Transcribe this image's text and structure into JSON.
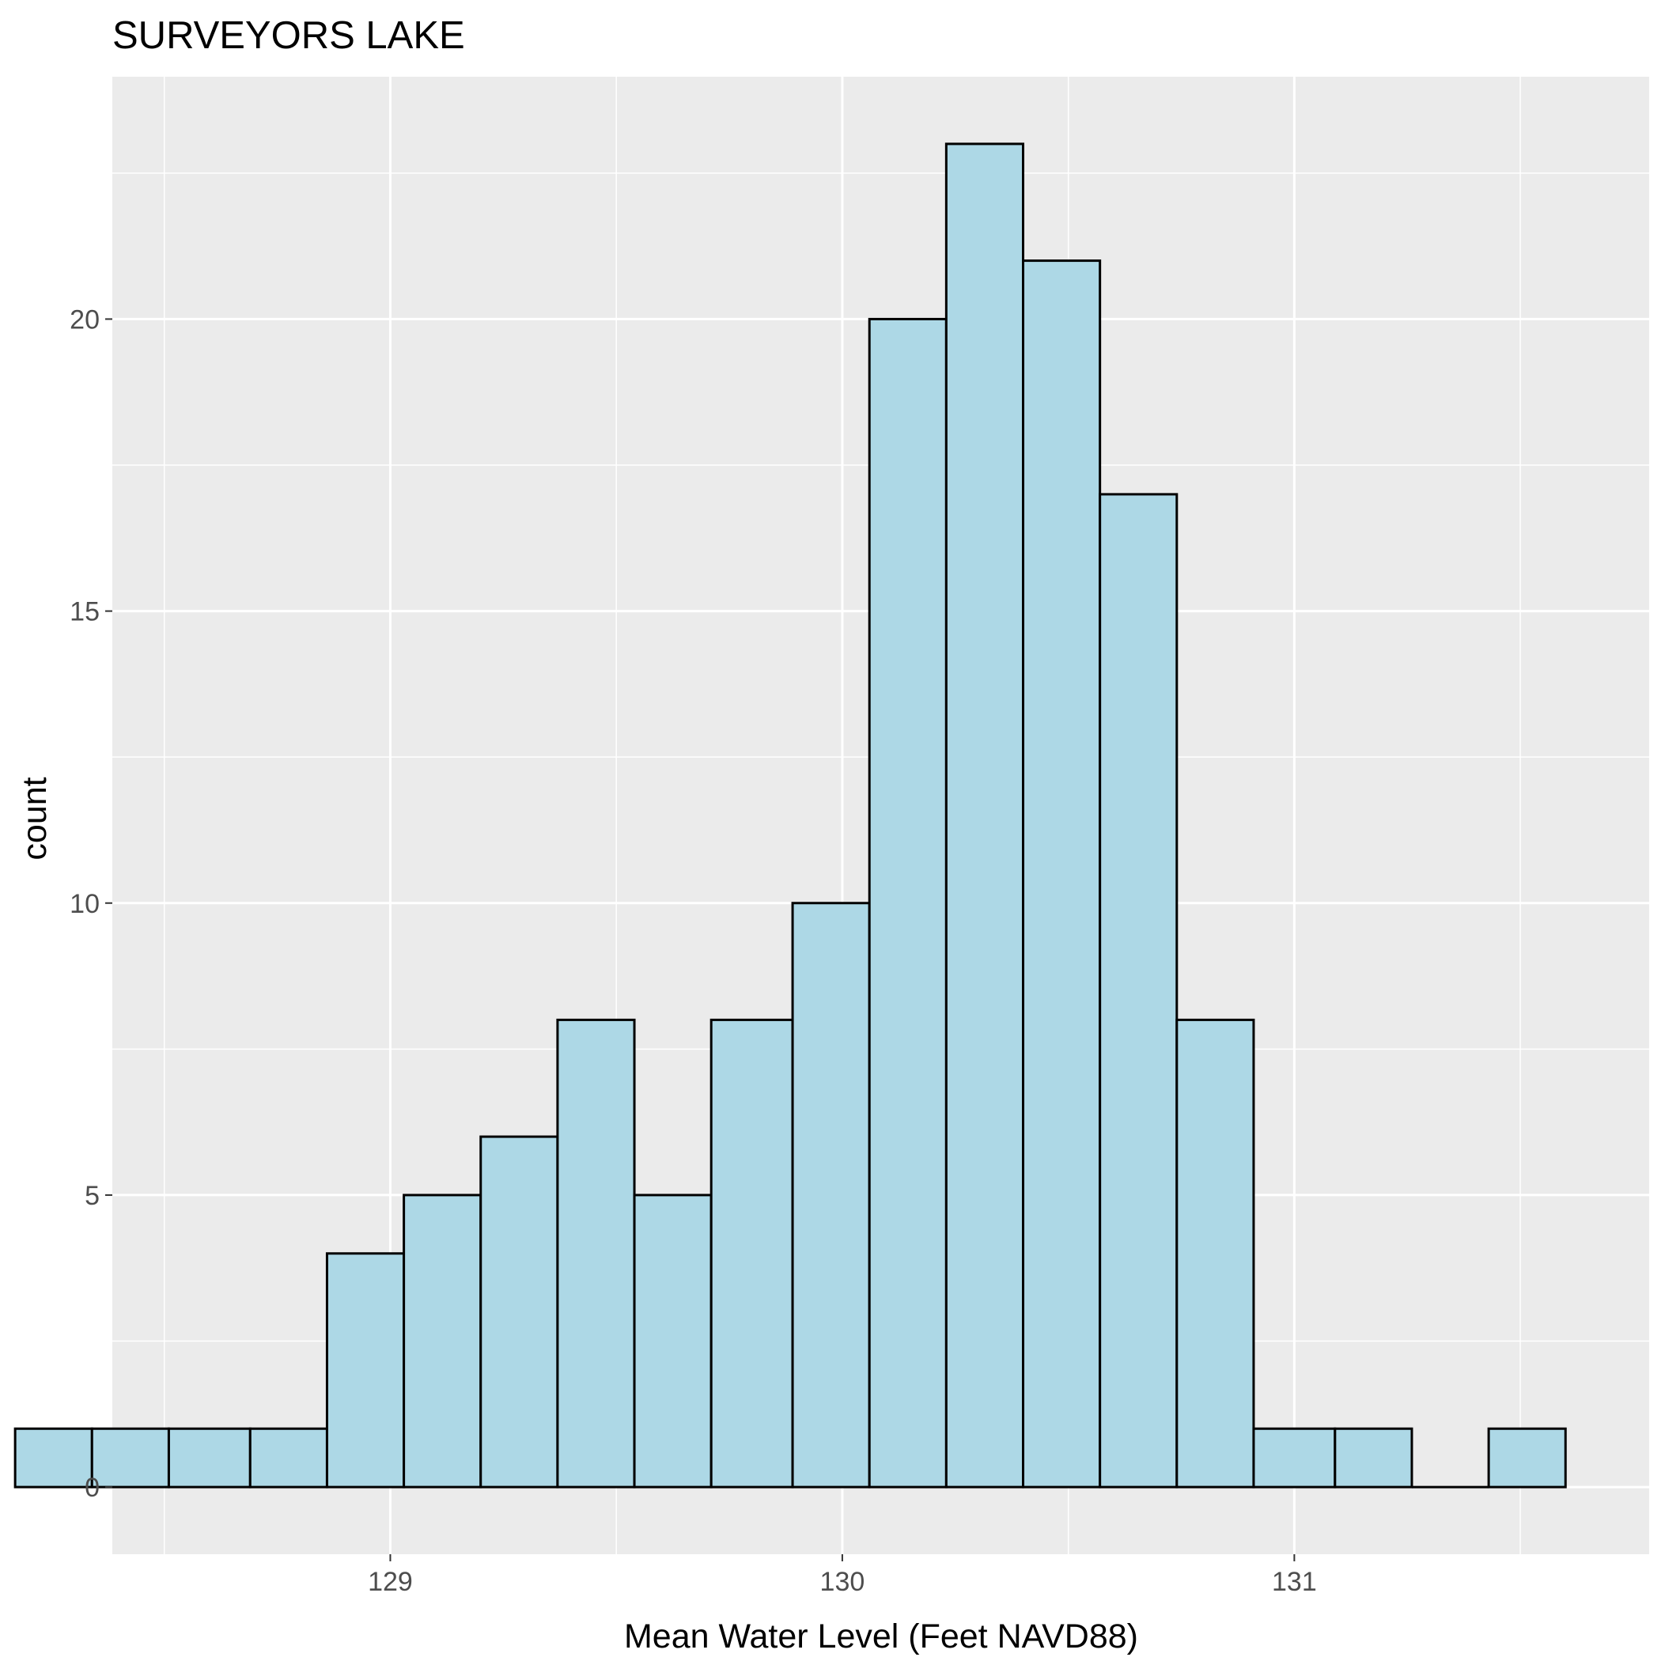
{
  "chart_data": {
    "type": "bar",
    "title": "SURVEYORS LAKE",
    "xlabel": "Mean Water Level (Feet NAVD88)",
    "ylabel": "count",
    "xlim": [
      128.385,
      131.785
    ],
    "ylim": [
      -1.15,
      24.15
    ],
    "x_ticks": [
      129,
      130,
      131
    ],
    "y_ticks": [
      0,
      5,
      10,
      15,
      20
    ],
    "x_minor_gridlines": [
      128.5,
      129.5,
      130.5,
      131.5
    ],
    "y_minor_gridlines": [
      2.5,
      7.5,
      12.5,
      17.5,
      22.5
    ],
    "bin_width": 0.1714,
    "bins": [
      {
        "xmin": 128.17,
        "xmax": 128.34,
        "count": 1
      },
      {
        "xmin": 128.34,
        "xmax": 128.51,
        "count": 1
      },
      {
        "xmin": 128.51,
        "xmax": 128.69,
        "count": 1
      },
      {
        "xmin": 128.69,
        "xmax": 128.86,
        "count": 1
      },
      {
        "xmin": 128.86,
        "xmax": 129.03,
        "count": 4
      },
      {
        "xmin": 129.03,
        "xmax": 129.2,
        "count": 5
      },
      {
        "xmin": 129.2,
        "xmax": 129.37,
        "count": 6
      },
      {
        "xmin": 129.37,
        "xmax": 129.54,
        "count": 8
      },
      {
        "xmin": 129.54,
        "xmax": 129.71,
        "count": 5
      },
      {
        "xmin": 129.71,
        "xmax": 129.89,
        "count": 8
      },
      {
        "xmin": 129.89,
        "xmax": 130.06,
        "count": 10
      },
      {
        "xmin": 130.06,
        "xmax": 130.23,
        "count": 20
      },
      {
        "xmin": 130.23,
        "xmax": 130.4,
        "count": 23
      },
      {
        "xmin": 130.4,
        "xmax": 130.57,
        "count": 21
      },
      {
        "xmin": 130.57,
        "xmax": 130.74,
        "count": 17
      },
      {
        "xmin": 130.74,
        "xmax": 130.91,
        "count": 8
      },
      {
        "xmin": 130.91,
        "xmax": 131.09,
        "count": 1
      },
      {
        "xmin": 131.09,
        "xmax": 131.26,
        "count": 1
      },
      {
        "xmin": 131.26,
        "xmax": 131.43,
        "count": 0
      },
      {
        "xmin": 131.43,
        "xmax": 131.6,
        "count": 1
      }
    ],
    "colors": {
      "bar_fill": "#add8e6",
      "bar_stroke": "#000000",
      "panel_background": "#ebebeb",
      "gridline": "#ffffff",
      "tick_label": "#4d4d4d",
      "tick_mark": "#333333"
    },
    "grid": true,
    "legend": "none"
  }
}
